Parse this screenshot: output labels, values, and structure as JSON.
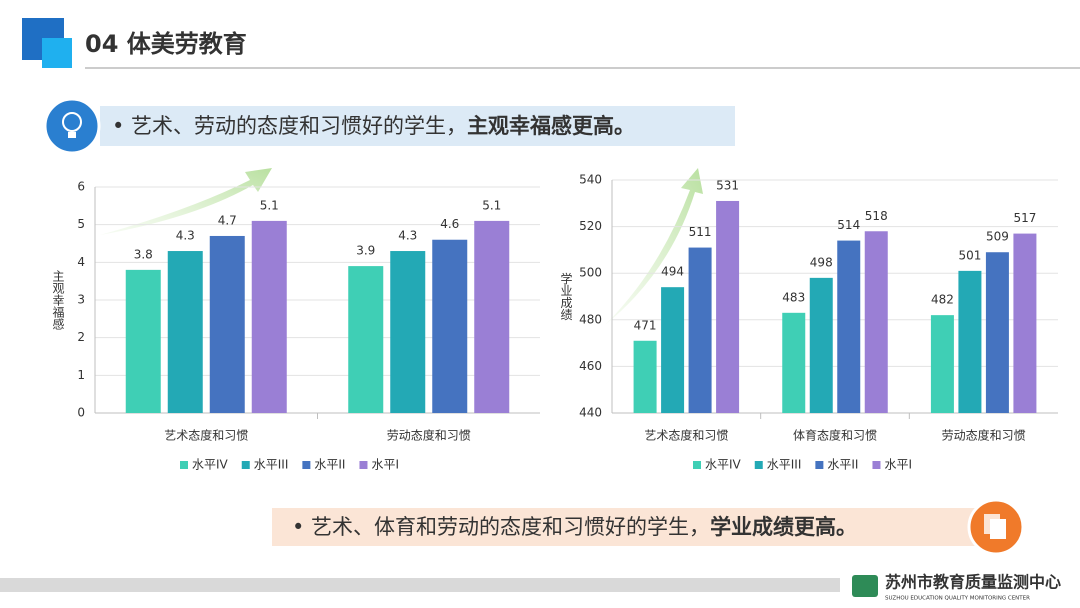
{
  "header": {
    "title": "04  体美劳教育"
  },
  "callouts": [
    {
      "text": "• 艺术、劳动的态度和习惯好的学生，",
      "emphasis": "主观幸福感更高。"
    },
    {
      "text": "• 艺术、体育和劳动的态度和习惯好的学生，",
      "emphasis": "学业成绩更高。"
    }
  ],
  "footer": {
    "name": "苏州市教育质量监测中心",
    "subtitle": "SUZHOU EDUCATION QUALITY MONITORING CENTER"
  },
  "chart_data": [
    {
      "type": "bar",
      "y_label": "主观幸福感",
      "categories": [
        "艺术态度和习惯",
        "劳动态度和习惯"
      ],
      "series": [
        {
          "name": "水平IV",
          "color": "#3fcfb5",
          "values": [
            3.8,
            3.9
          ]
        },
        {
          "name": "水平III",
          "color": "#23a9b5",
          "values": [
            4.3,
            4.3
          ]
        },
        {
          "name": "水平II",
          "color": "#4573c0",
          "values": [
            4.7,
            4.6
          ]
        },
        {
          "name": "水平I",
          "color": "#9a7fd5",
          "values": [
            5.1,
            5.1
          ]
        }
      ],
      "ylim": [
        0,
        6
      ],
      "yticks": [
        0,
        1,
        2,
        3,
        4,
        5,
        6
      ],
      "grid": true,
      "legend": "bottom"
    },
    {
      "type": "bar",
      "y_label": "学业成绩",
      "categories": [
        "艺术态度和习惯",
        "体育态度和习惯",
        "劳动态度和习惯"
      ],
      "series": [
        {
          "name": "水平IV",
          "color": "#3fcfb5",
          "values": [
            471,
            483,
            482
          ]
        },
        {
          "name": "水平III",
          "color": "#23a9b5",
          "values": [
            494,
            498,
            501
          ]
        },
        {
          "name": "水平II",
          "color": "#4573c0",
          "values": [
            511,
            514,
            509
          ]
        },
        {
          "name": "水平I",
          "color": "#9a7fd5",
          "values": [
            531,
            518,
            517
          ]
        }
      ],
      "ylim": [
        440,
        540
      ],
      "yticks": [
        440,
        460,
        480,
        500,
        520,
        540
      ],
      "grid": true,
      "legend": "bottom"
    }
  ]
}
